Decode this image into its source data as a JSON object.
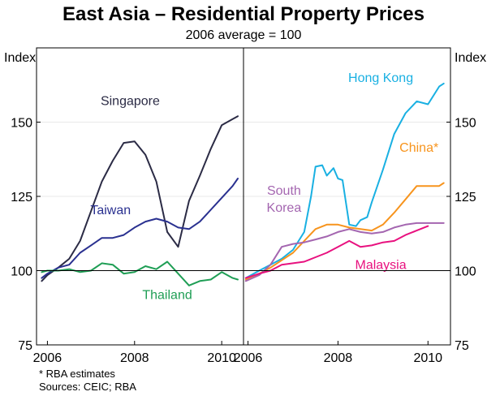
{
  "title": "East Asia – Residential Property Prices",
  "subtitle": "2006 average = 100",
  "notes": {
    "footnote": "*    RBA estimates",
    "sources": "Sources: CEIC; RBA"
  },
  "chart_data": {
    "type": "line",
    "title": "East Asia – Residential Property Prices",
    "subtitle": "2006 average = 100",
    "ylabel_left": "Index",
    "ylabel_right": "Index",
    "ylim": [
      75,
      175
    ],
    "yticks": [
      75,
      100,
      125,
      150
    ],
    "panels": [
      {
        "name": "left",
        "xlim": [
          2005.75,
          2010.5
        ],
        "xticks": [
          2006,
          2008,
          2010
        ],
        "series": [
          {
            "name": "Singapore",
            "color": "#2b2b45",
            "label_at": [
              2007.9,
              155.7
            ],
            "x": [
              2005.87,
              2006.0,
              2006.25,
              2006.5,
              2006.75,
              2007.0,
              2007.25,
              2007.5,
              2007.75,
              2008.0,
              2008.25,
              2008.5,
              2008.75,
              2009.0,
              2009.25,
              2009.5,
              2009.75,
              2010.0,
              2010.25,
              2010.37
            ],
            "y": [
              96.5,
              98.5,
              101,
              104,
              110,
              120,
              130,
              137,
              143,
              143.5,
              139,
              130,
              113,
              108,
              123.5,
              132,
              141,
              149,
              151,
              152
            ]
          },
          {
            "name": "Taiwan",
            "color": "#2a3190",
            "label_at": [
              2007.45,
              119
            ],
            "x": [
              2005.87,
              2006.0,
              2006.25,
              2006.5,
              2006.75,
              2007.0,
              2007.25,
              2007.5,
              2007.75,
              2008.0,
              2008.25,
              2008.5,
              2008.75,
              2009.0,
              2009.25,
              2009.5,
              2009.75,
              2010.0,
              2010.25,
              2010.37
            ],
            "y": [
              97.5,
              99,
              101,
              102,
              106,
              108.5,
              111,
              111,
              112,
              114.5,
              116.5,
              117.5,
              116.5,
              114.5,
              114,
              116.5,
              120.5,
              124.5,
              128.5,
              131
            ]
          },
          {
            "name": "Thailand",
            "color": "#1f9e55",
            "label_at": [
              2008.75,
              90.5
            ],
            "x": [
              2005.87,
              2006.0,
              2006.25,
              2006.5,
              2006.75,
              2007.0,
              2007.25,
              2007.5,
              2007.75,
              2008.0,
              2008.25,
              2008.5,
              2008.75,
              2009.0,
              2009.25,
              2009.5,
              2009.75,
              2010.0,
              2010.25,
              2010.37
            ],
            "y": [
              99.5,
              100,
              100,
              100.5,
              99.5,
              100,
              102.5,
              102,
              99,
              99.5,
              101.5,
              100.5,
              103,
              99,
              95,
              96.5,
              97,
              99.5,
              97.5,
              97
            ]
          }
        ]
      },
      {
        "name": "right",
        "xlim": [
          2005.9,
          2010.5
        ],
        "xticks": [
          2006,
          2008,
          2010
        ],
        "series": [
          {
            "name": "Hong Kong",
            "color": "#19b0e2",
            "label_at": [
              2008.95,
              163.5
            ],
            "x": [
              2005.95,
              2006.25,
              2006.5,
              2006.75,
              2007.0,
              2007.25,
              2007.4,
              2007.5,
              2007.65,
              2007.75,
              2007.9,
              2008.0,
              2008.1,
              2008.25,
              2008.4,
              2008.5,
              2008.65,
              2008.75,
              2009.0,
              2009.25,
              2009.5,
              2009.75,
              2010.0,
              2010.25,
              2010.35
            ],
            "y": [
              97.5,
              100,
              102,
              104,
              107,
              113,
              125,
              135,
              135.5,
              132,
              134.5,
              131,
              130.5,
              115.5,
              115,
              117,
              118,
              123,
              134,
              146,
              153,
              157,
              156,
              162,
              163
            ]
          },
          {
            "name": "China*",
            "color": "#f7941d",
            "label_at": [
              2009.8,
              140
            ],
            "x": [
              2005.95,
              2006.25,
              2006.5,
              2006.75,
              2007.0,
              2007.25,
              2007.5,
              2007.75,
              2008.0,
              2008.25,
              2008.5,
              2008.75,
              2009.0,
              2009.25,
              2009.5,
              2009.75,
              2010.0,
              2010.25,
              2010.35
            ],
            "y": [
              97,
              99,
              101,
              103.5,
              106,
              110,
              114,
              115.5,
              115.5,
              114.5,
              114,
              113.5,
              115.5,
              119.5,
              124,
              128.5,
              128.5,
              128.5,
              129.5
            ]
          },
          {
            "name": "South Korea",
            "color": "#a466b0",
            "label_at": [
              2006.8,
              125.5
            ],
            "label_lines": [
              "South",
              "Korea"
            ],
            "x": [
              2005.95,
              2006.25,
              2006.5,
              2006.75,
              2007.0,
              2007.25,
              2007.5,
              2007.75,
              2008.0,
              2008.25,
              2008.5,
              2008.75,
              2009.0,
              2009.25,
              2009.5,
              2009.75,
              2010.0,
              2010.25,
              2010.35
            ],
            "y": [
              96.5,
              98.5,
              102,
              108,
              109,
              109.5,
              110.5,
              111.5,
              113,
              114,
              113,
              112.5,
              113,
              114.5,
              115.5,
              116,
              116,
              116,
              116
            ]
          },
          {
            "name": "Malaysia",
            "color": "#e8117f",
            "label_at": [
              2008.95,
              100.5
            ],
            "x": [
              2005.95,
              2006.25,
              2006.5,
              2006.75,
              2007.0,
              2007.25,
              2007.5,
              2007.75,
              2008.0,
              2008.25,
              2008.5,
              2008.75,
              2009.0,
              2009.25,
              2009.5,
              2009.75,
              2010.0
            ],
            "y": [
              97.5,
              99,
              100,
              102,
              102.5,
              103,
              104.5,
              106,
              108,
              110,
              108,
              108.5,
              109.5,
              110,
              112,
              113.5,
              115
            ]
          }
        ]
      }
    ]
  }
}
